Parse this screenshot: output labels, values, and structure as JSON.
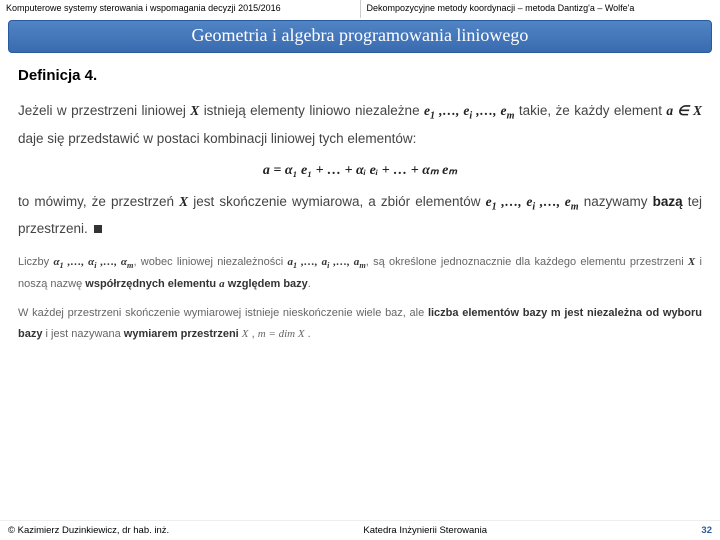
{
  "header": {
    "left": "Komputerowe systemy sterowania i wspomagania decyzji 2015/2016",
    "right": "Dekompozycyjne metody koordynacji – metoda Dantizg'a – Wolfe'a"
  },
  "title": "Geometria  i algebra programowania liniowego",
  "definition_label": "Definicja 4.",
  "p1_a": "Jeżeli w przestrzeni liniowej ",
  "p1_b": " istnieją elementy liniowo niezależne ",
  "p1_c": " takie, że każdy element ",
  "p1_d": " daje się przedstawić w postaci kombinacji liniowej tych elementów:",
  "formula": "a = α₁ e₁ + … + αᵢ eᵢ + … + αₘ eₘ",
  "p2_a": "to mówimy, że przestrzeń ",
  "p2_b": " jest skończenie wymiarowa, a zbiór elementów ",
  "p2_c": " nazywamy ",
  "p2_d": "bazą",
  "p2_e": " tej przestrzeni. ",
  "s1_a": "Liczby ",
  "s1_b": " wobec liniowej niezależności ",
  "s1_c": " są określone jednoznacznie dla każdego elementu przestrzeni ",
  "s1_d": " i noszą nazwę ",
  "s1_e": "współrzędnych elementu ",
  "s1_f": " względem bazy",
  "s2_a": "W każdej przestrzeni skończenie wymiarowej istnieje nieskończenie wiele baz, ale ",
  "s2_b": "liczba elementów bazy m jest niezależna od wyboru bazy",
  "s2_c": " i jest nazywana ",
  "s2_d": "wymiarem przestrzeni",
  "footer": {
    "left": "© Kazimierz Duzinkiewicz, dr hab. inż.",
    "mid": "Katedra Inżynierii Sterowania",
    "page": "32"
  },
  "colors": {
    "band_top": "#5084c4",
    "band_bottom": "#3a6bb0",
    "band_border": "#2a5a9e",
    "page_num": "#2a5a9e"
  }
}
